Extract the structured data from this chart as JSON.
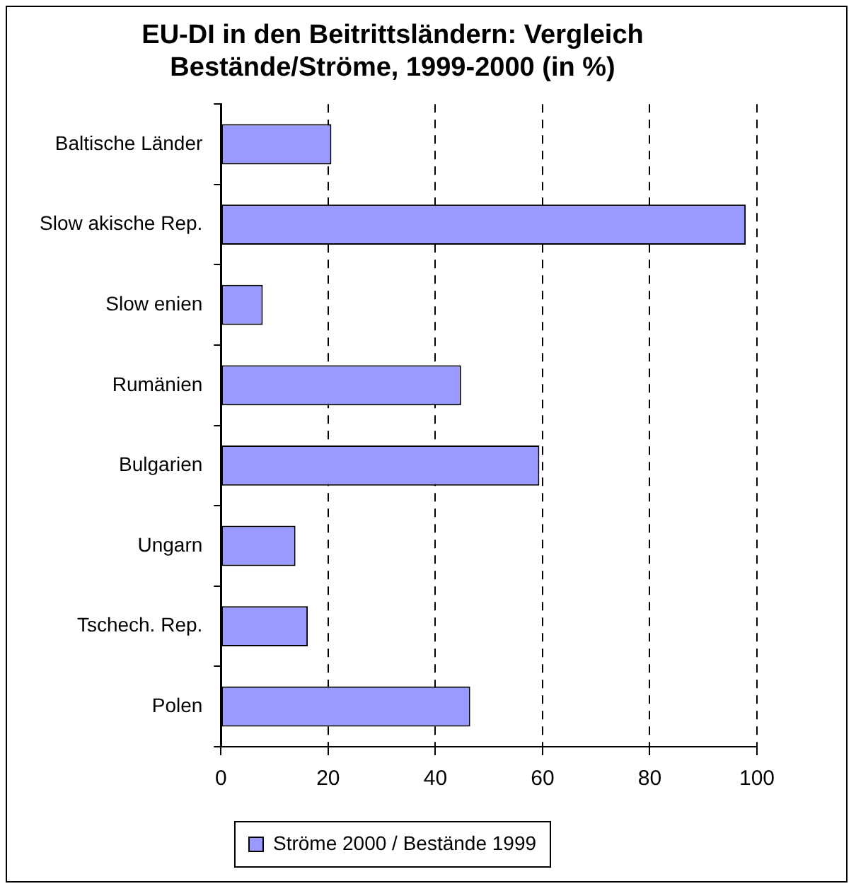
{
  "chart_data": {
    "type": "bar",
    "orientation": "horizontal",
    "title": [
      "EU-DI in den Beitrittsländern: Vergleich",
      "Bestände/Ströme, 1999-2000 (in %)"
    ],
    "categories": [
      "Baltische Länder",
      "Slow akische Rep.",
      "Slow enien",
      "Rumänien",
      "Bulgarien",
      "Ungarn",
      "Tschech. Rep.",
      "Polen"
    ],
    "series": [
      {
        "name": "Ströme 2000 / Bestände 1999",
        "color": "#9999ff",
        "values": [
          20.6,
          97.9,
          7.8,
          44.8,
          59.4,
          13.9,
          16.2,
          46.5
        ]
      }
    ],
    "xlim": [
      0,
      100
    ],
    "xticks": [
      0,
      20,
      40,
      60,
      80,
      100
    ],
    "grid": "x",
    "legend": "bottom"
  }
}
